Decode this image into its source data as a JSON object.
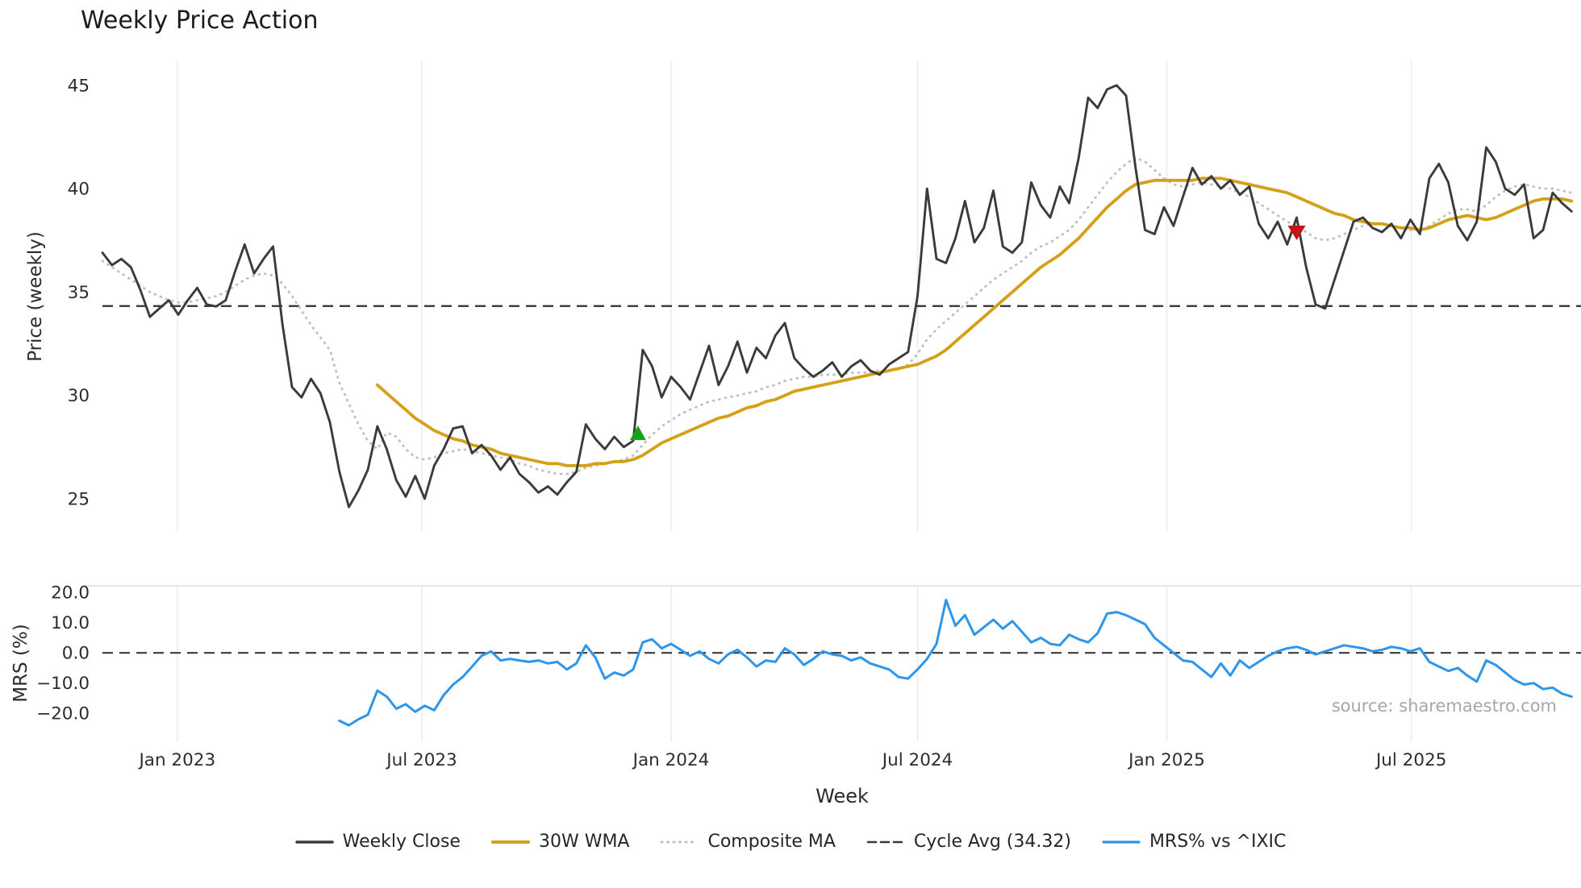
{
  "title": "Weekly Price Action",
  "source": "source: sharemaestro.com",
  "colors": {
    "weekly_close": "#3b3b3b",
    "wma": "#d4a017",
    "composite": "#c2c2c2",
    "cycle_avg": "#3a3a3a",
    "mrs": "#2e96ea",
    "buy_marker": "#17a317",
    "sell_marker": "#c81414",
    "grid": "#ebebf2"
  },
  "x_axis": {
    "label": "Week",
    "xlim": [
      0,
      156
    ],
    "ticks": [
      {
        "idx": 7.9,
        "label": "Jan 2023"
      },
      {
        "idx": 33.7,
        "label": "Jul 2023"
      },
      {
        "idx": 60.0,
        "label": "Jan 2024"
      },
      {
        "idx": 86.0,
        "label": "Jul 2024"
      },
      {
        "idx": 112.3,
        "label": "Jan 2025"
      },
      {
        "idx": 138.1,
        "label": "Jul 2025"
      }
    ]
  },
  "legend": {
    "items": [
      {
        "label": "Weekly Close",
        "color": "#3b3b3b",
        "style": "solid",
        "width": 3.5
      },
      {
        "label": "30W WMA",
        "color": "#d4a017",
        "style": "solid",
        "width": 4
      },
      {
        "label": "Composite MA",
        "color": "#c2c2c2",
        "style": "dotted",
        "width": 3
      },
      {
        "label": "Cycle Avg (34.32)",
        "color": "#3a3a3a",
        "style": "dashed",
        "width": 2.6
      },
      {
        "label": "MRS% vs ^IXIC",
        "color": "#2e96ea",
        "style": "solid",
        "width": 3.2
      }
    ]
  },
  "chart_data": [
    {
      "panel": "price",
      "type": "line",
      "title": "Weekly Price Action",
      "ylabel": "Price (weekly)",
      "ylim": [
        23.4,
        46.2
      ],
      "grid": "vertical",
      "yticks": [
        {
          "v": 25,
          "label": "25"
        },
        {
          "v": 30,
          "label": "30"
        },
        {
          "v": 35,
          "label": "35"
        },
        {
          "v": 40,
          "label": "40"
        },
        {
          "v": 45,
          "label": "45"
        }
      ],
      "hlines": [
        {
          "name": "cycle-avg",
          "label": "Cycle Avg (34.32)",
          "value": 34.32,
          "color": "#3a3a3a",
          "style": "dashed",
          "width": 2.4
        }
      ],
      "markers": [
        {
          "name": "buy-signal",
          "shape": "triangle-up",
          "color": "#17a317",
          "idx": 56.5,
          "value": 28.15
        },
        {
          "name": "sell-signal",
          "shape": "triangle-down",
          "color": "#c81414",
          "idx": 126,
          "value": 37.9
        }
      ],
      "series": [
        {
          "name": "Weekly Close",
          "color": "#3b3b3b",
          "style": "solid",
          "width": 2.9,
          "start_idx": 0,
          "values": [
            36.9,
            36.3,
            36.6,
            36.2,
            35.1,
            33.8,
            34.2,
            34.6,
            33.9,
            34.6,
            35.2,
            34.4,
            34.3,
            34.6,
            36.0,
            37.3,
            35.9,
            36.6,
            37.2,
            33.4,
            30.4,
            29.9,
            30.8,
            30.1,
            28.7,
            26.3,
            24.6,
            25.4,
            26.4,
            28.5,
            27.4,
            25.9,
            25.1,
            26.1,
            25.0,
            26.6,
            27.4,
            28.4,
            28.5,
            27.2,
            27.6,
            27.1,
            26.4,
            27.0,
            26.2,
            25.8,
            25.3,
            25.6,
            25.2,
            25.8,
            26.3,
            28.6,
            27.9,
            27.4,
            28.0,
            27.5,
            27.8,
            32.2,
            31.4,
            29.9,
            30.9,
            30.4,
            29.8,
            31.1,
            32.4,
            30.5,
            31.4,
            32.6,
            31.1,
            32.3,
            31.8,
            32.9,
            33.5,
            31.8,
            31.3,
            30.9,
            31.2,
            31.6,
            30.9,
            31.4,
            31.7,
            31.2,
            31.0,
            31.5,
            31.8,
            32.1,
            34.8,
            40.0,
            36.6,
            36.4,
            37.6,
            39.4,
            37.4,
            38.1,
            39.9,
            37.2,
            36.9,
            37.4,
            40.3,
            39.2,
            38.6,
            40.1,
            39.3,
            41.5,
            44.4,
            43.9,
            44.8,
            45.0,
            44.5,
            41.0,
            38.0,
            37.8,
            39.1,
            38.2,
            39.6,
            41.0,
            40.2,
            40.6,
            40.0,
            40.4,
            39.7,
            40.1,
            38.3,
            37.6,
            38.4,
            37.3,
            38.6,
            36.2,
            34.4,
            34.2,
            35.6,
            37.0,
            38.4,
            38.6,
            38.1,
            37.9,
            38.3,
            37.6,
            38.5,
            37.8,
            40.5,
            41.2,
            40.3,
            38.2,
            37.5,
            38.4,
            42.0,
            41.3,
            40.0,
            39.7,
            40.2,
            37.6,
            38.0,
            39.8,
            39.3,
            38.9
          ]
        },
        {
          "name": "30W WMA",
          "color": "#d4a017",
          "style": "solid",
          "width": 3.8,
          "start_idx": 29,
          "values": [
            30.5,
            30.1,
            29.7,
            29.3,
            28.9,
            28.6,
            28.3,
            28.1,
            27.9,
            27.8,
            27.6,
            27.5,
            27.4,
            27.2,
            27.1,
            27.0,
            26.9,
            26.8,
            26.7,
            26.7,
            26.6,
            26.6,
            26.6,
            26.7,
            26.7,
            26.8,
            26.8,
            26.9,
            27.1,
            27.4,
            27.7,
            27.9,
            28.1,
            28.3,
            28.5,
            28.7,
            28.9,
            29.0,
            29.2,
            29.4,
            29.5,
            29.7,
            29.8,
            30.0,
            30.2,
            30.3,
            30.4,
            30.5,
            30.6,
            30.7,
            30.8,
            30.9,
            31.0,
            31.1,
            31.2,
            31.3,
            31.4,
            31.5,
            31.7,
            31.9,
            32.2,
            32.6,
            33.0,
            33.4,
            33.8,
            34.2,
            34.6,
            35.0,
            35.4,
            35.8,
            36.2,
            36.5,
            36.8,
            37.2,
            37.6,
            38.1,
            38.6,
            39.1,
            39.5,
            39.9,
            40.2,
            40.3,
            40.4,
            40.4,
            40.4,
            40.4,
            40.4,
            40.5,
            40.5,
            40.5,
            40.4,
            40.3,
            40.2,
            40.1,
            40.0,
            39.9,
            39.8,
            39.6,
            39.4,
            39.2,
            39.0,
            38.8,
            38.7,
            38.5,
            38.4,
            38.3,
            38.3,
            38.2,
            38.1,
            38.1,
            38.0,
            38.1,
            38.3,
            38.5,
            38.6,
            38.7,
            38.6,
            38.5,
            38.6,
            38.8,
            39.0,
            39.2,
            39.4,
            39.5,
            39.5,
            39.5,
            39.4
          ]
        },
        {
          "name": "Composite MA",
          "color": "#c2c2c2",
          "style": "dotted",
          "width": 2.9,
          "start_idx": 0,
          "values": [
            36.5,
            36.2,
            35.9,
            35.6,
            35.3,
            35.0,
            34.8,
            34.6,
            34.5,
            34.5,
            34.6,
            34.7,
            34.8,
            35.0,
            35.3,
            35.6,
            35.8,
            35.9,
            35.8,
            35.4,
            34.8,
            34.1,
            33.4,
            32.8,
            32.2,
            30.6,
            29.6,
            28.6,
            27.8,
            27.4,
            28.2,
            28.0,
            27.4,
            27.0,
            26.9,
            27.0,
            27.2,
            27.3,
            27.4,
            27.3,
            27.2,
            27.1,
            27.0,
            26.9,
            26.7,
            26.6,
            26.4,
            26.3,
            26.2,
            26.2,
            26.3,
            26.5,
            26.6,
            26.7,
            26.8,
            26.9,
            27.1,
            27.6,
            28.1,
            28.5,
            28.8,
            29.1,
            29.3,
            29.5,
            29.7,
            29.8,
            29.9,
            30.0,
            30.1,
            30.2,
            30.4,
            30.5,
            30.7,
            30.8,
            30.9,
            30.9,
            31.0,
            31.0,
            31.0,
            31.1,
            31.1,
            31.1,
            31.2,
            31.2,
            31.3,
            31.5,
            32.0,
            32.7,
            33.2,
            33.6,
            34.0,
            34.4,
            34.8,
            35.2,
            35.6,
            35.9,
            36.2,
            36.5,
            36.9,
            37.2,
            37.4,
            37.7,
            38.0,
            38.5,
            39.1,
            39.7,
            40.3,
            40.8,
            41.2,
            41.5,
            41.3,
            40.9,
            40.5,
            40.2,
            40.1,
            40.2,
            40.3,
            40.2,
            40.1,
            40.0,
            39.8,
            39.6,
            39.3,
            39.0,
            38.7,
            38.4,
            38.2,
            37.9,
            37.6,
            37.5,
            37.6,
            37.8,
            38.0,
            38.2,
            38.3,
            38.3,
            38.2,
            38.1,
            38.0,
            38.0,
            38.2,
            38.5,
            38.8,
            39.0,
            39.0,
            38.9,
            39.2,
            39.6,
            39.9,
            40.1,
            40.2,
            40.1,
            40.0,
            40.0,
            39.9,
            39.8
          ]
        }
      ]
    },
    {
      "panel": "mrs",
      "type": "line",
      "ylabel": "MRS (%)",
      "ylim": [
        -29.3,
        22.2
      ],
      "grid": "vertical",
      "yticks": [
        {
          "v": 20,
          "label": "20.0"
        },
        {
          "v": 10,
          "label": "10.0"
        },
        {
          "v": 0,
          "label": "0.0"
        },
        {
          "v": -10,
          "label": "−10.0"
        },
        {
          "v": -20,
          "label": "−20.0"
        }
      ],
      "hlines": [
        {
          "name": "zero-line",
          "label": "",
          "value": 0,
          "color": "#3a3a3a",
          "style": "dashed",
          "width": 2.2
        }
      ],
      "markers": [],
      "series": [
        {
          "name": "MRS% vs ^IXIC",
          "color": "#2e96ea",
          "style": "solid",
          "width": 3.0,
          "start_idx": 25,
          "values": [
            -22.5,
            -24.0,
            -22.0,
            -20.5,
            -12.5,
            -14.5,
            -18.5,
            -17.0,
            -19.5,
            -17.5,
            -19.0,
            -14.0,
            -10.5,
            -8.0,
            -4.5,
            -1.0,
            0.5,
            -2.5,
            -2.0,
            -2.5,
            -3.0,
            -2.5,
            -3.5,
            -3.0,
            -5.5,
            -3.5,
            2.5,
            -1.5,
            -8.5,
            -6.5,
            -7.5,
            -5.5,
            3.5,
            4.5,
            1.5,
            3.0,
            1.0,
            -1.0,
            0.5,
            -2.0,
            -3.5,
            -0.5,
            1.0,
            -1.5,
            -4.5,
            -2.5,
            -3.0,
            1.5,
            -0.5,
            -4.0,
            -2.0,
            0.5,
            -0.5,
            -1.0,
            -2.5,
            -1.5,
            -3.5,
            -4.5,
            -5.5,
            -8.0,
            -8.5,
            -5.5,
            -2.0,
            3.0,
            17.5,
            9.0,
            12.5,
            6.0,
            8.5,
            11.0,
            8.0,
            10.5,
            7.0,
            3.5,
            5.0,
            3.0,
            2.5,
            6.0,
            4.5,
            3.5,
            6.5,
            13.0,
            13.5,
            12.5,
            11.0,
            9.5,
            5.0,
            2.5,
            0.0,
            -2.5,
            -3.0,
            -5.5,
            -8.0,
            -3.5,
            -7.5,
            -2.5,
            -5.0,
            -3.0,
            -1.0,
            0.5,
            1.5,
            2.0,
            1.0,
            -0.5,
            0.5,
            1.5,
            2.5,
            2.0,
            1.5,
            0.5,
            1.0,
            2.0,
            1.5,
            0.5,
            1.5,
            -3.0,
            -4.5,
            -6.0,
            -5.0,
            -7.5,
            -9.5,
            -2.5,
            -4.0,
            -6.5,
            -9.0,
            -10.5,
            -10.0,
            -12.0,
            -11.5,
            -13.5,
            -14.5
          ]
        }
      ]
    }
  ]
}
